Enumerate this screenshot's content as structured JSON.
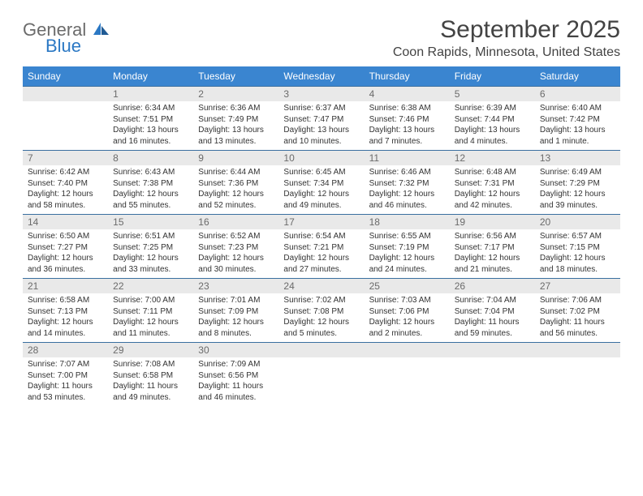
{
  "brand": {
    "part1": "General",
    "part2": "Blue"
  },
  "title": "September 2025",
  "location": "Coon Rapids, Minnesota, United States",
  "colors": {
    "header_bg": "#3a85d0",
    "header_text": "#ffffff",
    "daynum_bg": "#e9e9e9",
    "daynum_text": "#6b6b6b",
    "border": "#3a6fa0",
    "body_text": "#333333",
    "title_text": "#434343",
    "logo_gray": "#6b6b6b",
    "logo_blue": "#2b78c4"
  },
  "weekdays": [
    "Sunday",
    "Monday",
    "Tuesday",
    "Wednesday",
    "Thursday",
    "Friday",
    "Saturday"
  ],
  "weeks": [
    [
      null,
      {
        "n": "1",
        "sr": "6:34 AM",
        "ss": "7:51 PM",
        "dl": "13 hours and 16 minutes."
      },
      {
        "n": "2",
        "sr": "6:36 AM",
        "ss": "7:49 PM",
        "dl": "13 hours and 13 minutes."
      },
      {
        "n": "3",
        "sr": "6:37 AM",
        "ss": "7:47 PM",
        "dl": "13 hours and 10 minutes."
      },
      {
        "n": "4",
        "sr": "6:38 AM",
        "ss": "7:46 PM",
        "dl": "13 hours and 7 minutes."
      },
      {
        "n": "5",
        "sr": "6:39 AM",
        "ss": "7:44 PM",
        "dl": "13 hours and 4 minutes."
      },
      {
        "n": "6",
        "sr": "6:40 AM",
        "ss": "7:42 PM",
        "dl": "13 hours and 1 minute."
      }
    ],
    [
      {
        "n": "7",
        "sr": "6:42 AM",
        "ss": "7:40 PM",
        "dl": "12 hours and 58 minutes."
      },
      {
        "n": "8",
        "sr": "6:43 AM",
        "ss": "7:38 PM",
        "dl": "12 hours and 55 minutes."
      },
      {
        "n": "9",
        "sr": "6:44 AM",
        "ss": "7:36 PM",
        "dl": "12 hours and 52 minutes."
      },
      {
        "n": "10",
        "sr": "6:45 AM",
        "ss": "7:34 PM",
        "dl": "12 hours and 49 minutes."
      },
      {
        "n": "11",
        "sr": "6:46 AM",
        "ss": "7:32 PM",
        "dl": "12 hours and 46 minutes."
      },
      {
        "n": "12",
        "sr": "6:48 AM",
        "ss": "7:31 PM",
        "dl": "12 hours and 42 minutes."
      },
      {
        "n": "13",
        "sr": "6:49 AM",
        "ss": "7:29 PM",
        "dl": "12 hours and 39 minutes."
      }
    ],
    [
      {
        "n": "14",
        "sr": "6:50 AM",
        "ss": "7:27 PM",
        "dl": "12 hours and 36 minutes."
      },
      {
        "n": "15",
        "sr": "6:51 AM",
        "ss": "7:25 PM",
        "dl": "12 hours and 33 minutes."
      },
      {
        "n": "16",
        "sr": "6:52 AM",
        "ss": "7:23 PM",
        "dl": "12 hours and 30 minutes."
      },
      {
        "n": "17",
        "sr": "6:54 AM",
        "ss": "7:21 PM",
        "dl": "12 hours and 27 minutes."
      },
      {
        "n": "18",
        "sr": "6:55 AM",
        "ss": "7:19 PM",
        "dl": "12 hours and 24 minutes."
      },
      {
        "n": "19",
        "sr": "6:56 AM",
        "ss": "7:17 PM",
        "dl": "12 hours and 21 minutes."
      },
      {
        "n": "20",
        "sr": "6:57 AM",
        "ss": "7:15 PM",
        "dl": "12 hours and 18 minutes."
      }
    ],
    [
      {
        "n": "21",
        "sr": "6:58 AM",
        "ss": "7:13 PM",
        "dl": "12 hours and 14 minutes."
      },
      {
        "n": "22",
        "sr": "7:00 AM",
        "ss": "7:11 PM",
        "dl": "12 hours and 11 minutes."
      },
      {
        "n": "23",
        "sr": "7:01 AM",
        "ss": "7:09 PM",
        "dl": "12 hours and 8 minutes."
      },
      {
        "n": "24",
        "sr": "7:02 AM",
        "ss": "7:08 PM",
        "dl": "12 hours and 5 minutes."
      },
      {
        "n": "25",
        "sr": "7:03 AM",
        "ss": "7:06 PM",
        "dl": "12 hours and 2 minutes."
      },
      {
        "n": "26",
        "sr": "7:04 AM",
        "ss": "7:04 PM",
        "dl": "11 hours and 59 minutes."
      },
      {
        "n": "27",
        "sr": "7:06 AM",
        "ss": "7:02 PM",
        "dl": "11 hours and 56 minutes."
      }
    ],
    [
      {
        "n": "28",
        "sr": "7:07 AM",
        "ss": "7:00 PM",
        "dl": "11 hours and 53 minutes."
      },
      {
        "n": "29",
        "sr": "7:08 AM",
        "ss": "6:58 PM",
        "dl": "11 hours and 49 minutes."
      },
      {
        "n": "30",
        "sr": "7:09 AM",
        "ss": "6:56 PM",
        "dl": "11 hours and 46 minutes."
      },
      null,
      null,
      null,
      null
    ]
  ],
  "labels": {
    "sunrise": "Sunrise:",
    "sunset": "Sunset:",
    "daylight": "Daylight:"
  }
}
